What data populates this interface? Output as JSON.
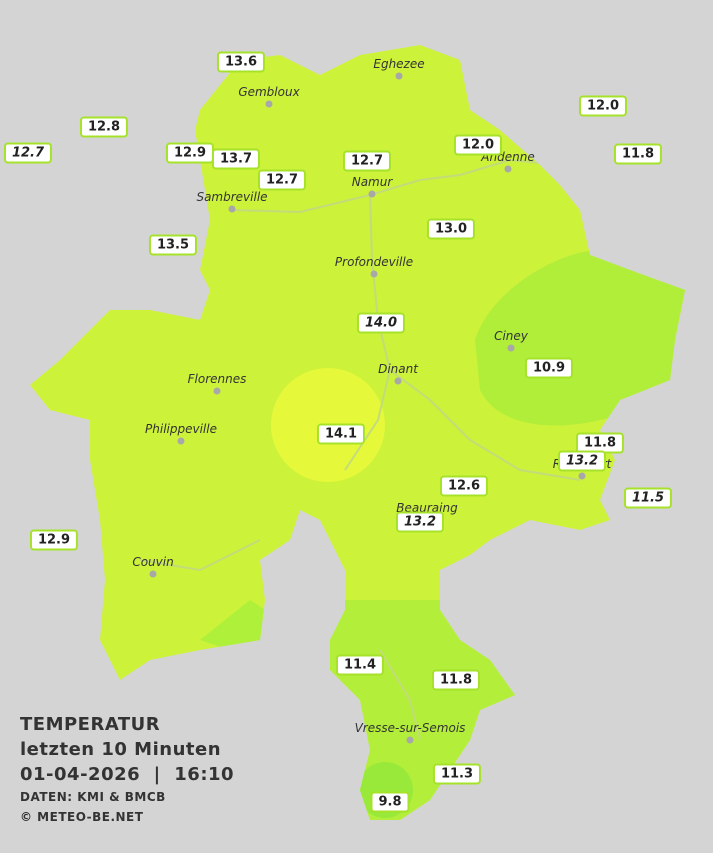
{
  "stations": [
    {
      "label": "13.6",
      "italic": false
    },
    {
      "label": "12.8",
      "italic": false
    },
    {
      "label": "12.7",
      "italic": true
    },
    {
      "label": "12.9",
      "italic": false
    },
    {
      "label": "13.7",
      "italic": false
    },
    {
      "label": "12.7",
      "italic": false
    },
    {
      "label": "12.7",
      "italic": false
    },
    {
      "label": "12.0",
      "italic": false
    },
    {
      "label": "12.0",
      "italic": false
    },
    {
      "label": "11.8",
      "italic": false
    },
    {
      "label": "13.5",
      "italic": false
    },
    {
      "label": "13.0",
      "italic": false
    },
    {
      "label": "14.0",
      "italic": true
    },
    {
      "label": "10.9",
      "italic": false
    },
    {
      "label": "14.1",
      "italic": false
    },
    {
      "label": "11.8",
      "italic": false
    },
    {
      "label": "13.2",
      "italic": true
    },
    {
      "label": "12.6",
      "italic": false
    },
    {
      "label": "11.5",
      "italic": true
    },
    {
      "label": "13.2",
      "italic": true
    },
    {
      "label": "12.9",
      "italic": false
    },
    {
      "label": "11.4",
      "italic": false
    },
    {
      "label": "11.8",
      "italic": false
    },
    {
      "label": "11.3",
      "italic": false
    },
    {
      "label": "9.8",
      "italic": false
    }
  ],
  "towns": [
    "Eghezee",
    "Gembloux",
    "Andenne",
    "Namur",
    "Sambreville",
    "Profondeville",
    "Ciney",
    "Dinant",
    "Florennes",
    "Philippeville",
    "Rochefort",
    "Beauraing",
    "Couvin",
    "Vresse-sur-Semois"
  ],
  "legend": {
    "title": "TEMPERATUR",
    "period": "letzten 10 Minuten",
    "datetime": "01-04-2026  |  16:10",
    "source": "DATEN: KMI & BMCB",
    "copyright": "© METEO-BE.NET"
  }
}
